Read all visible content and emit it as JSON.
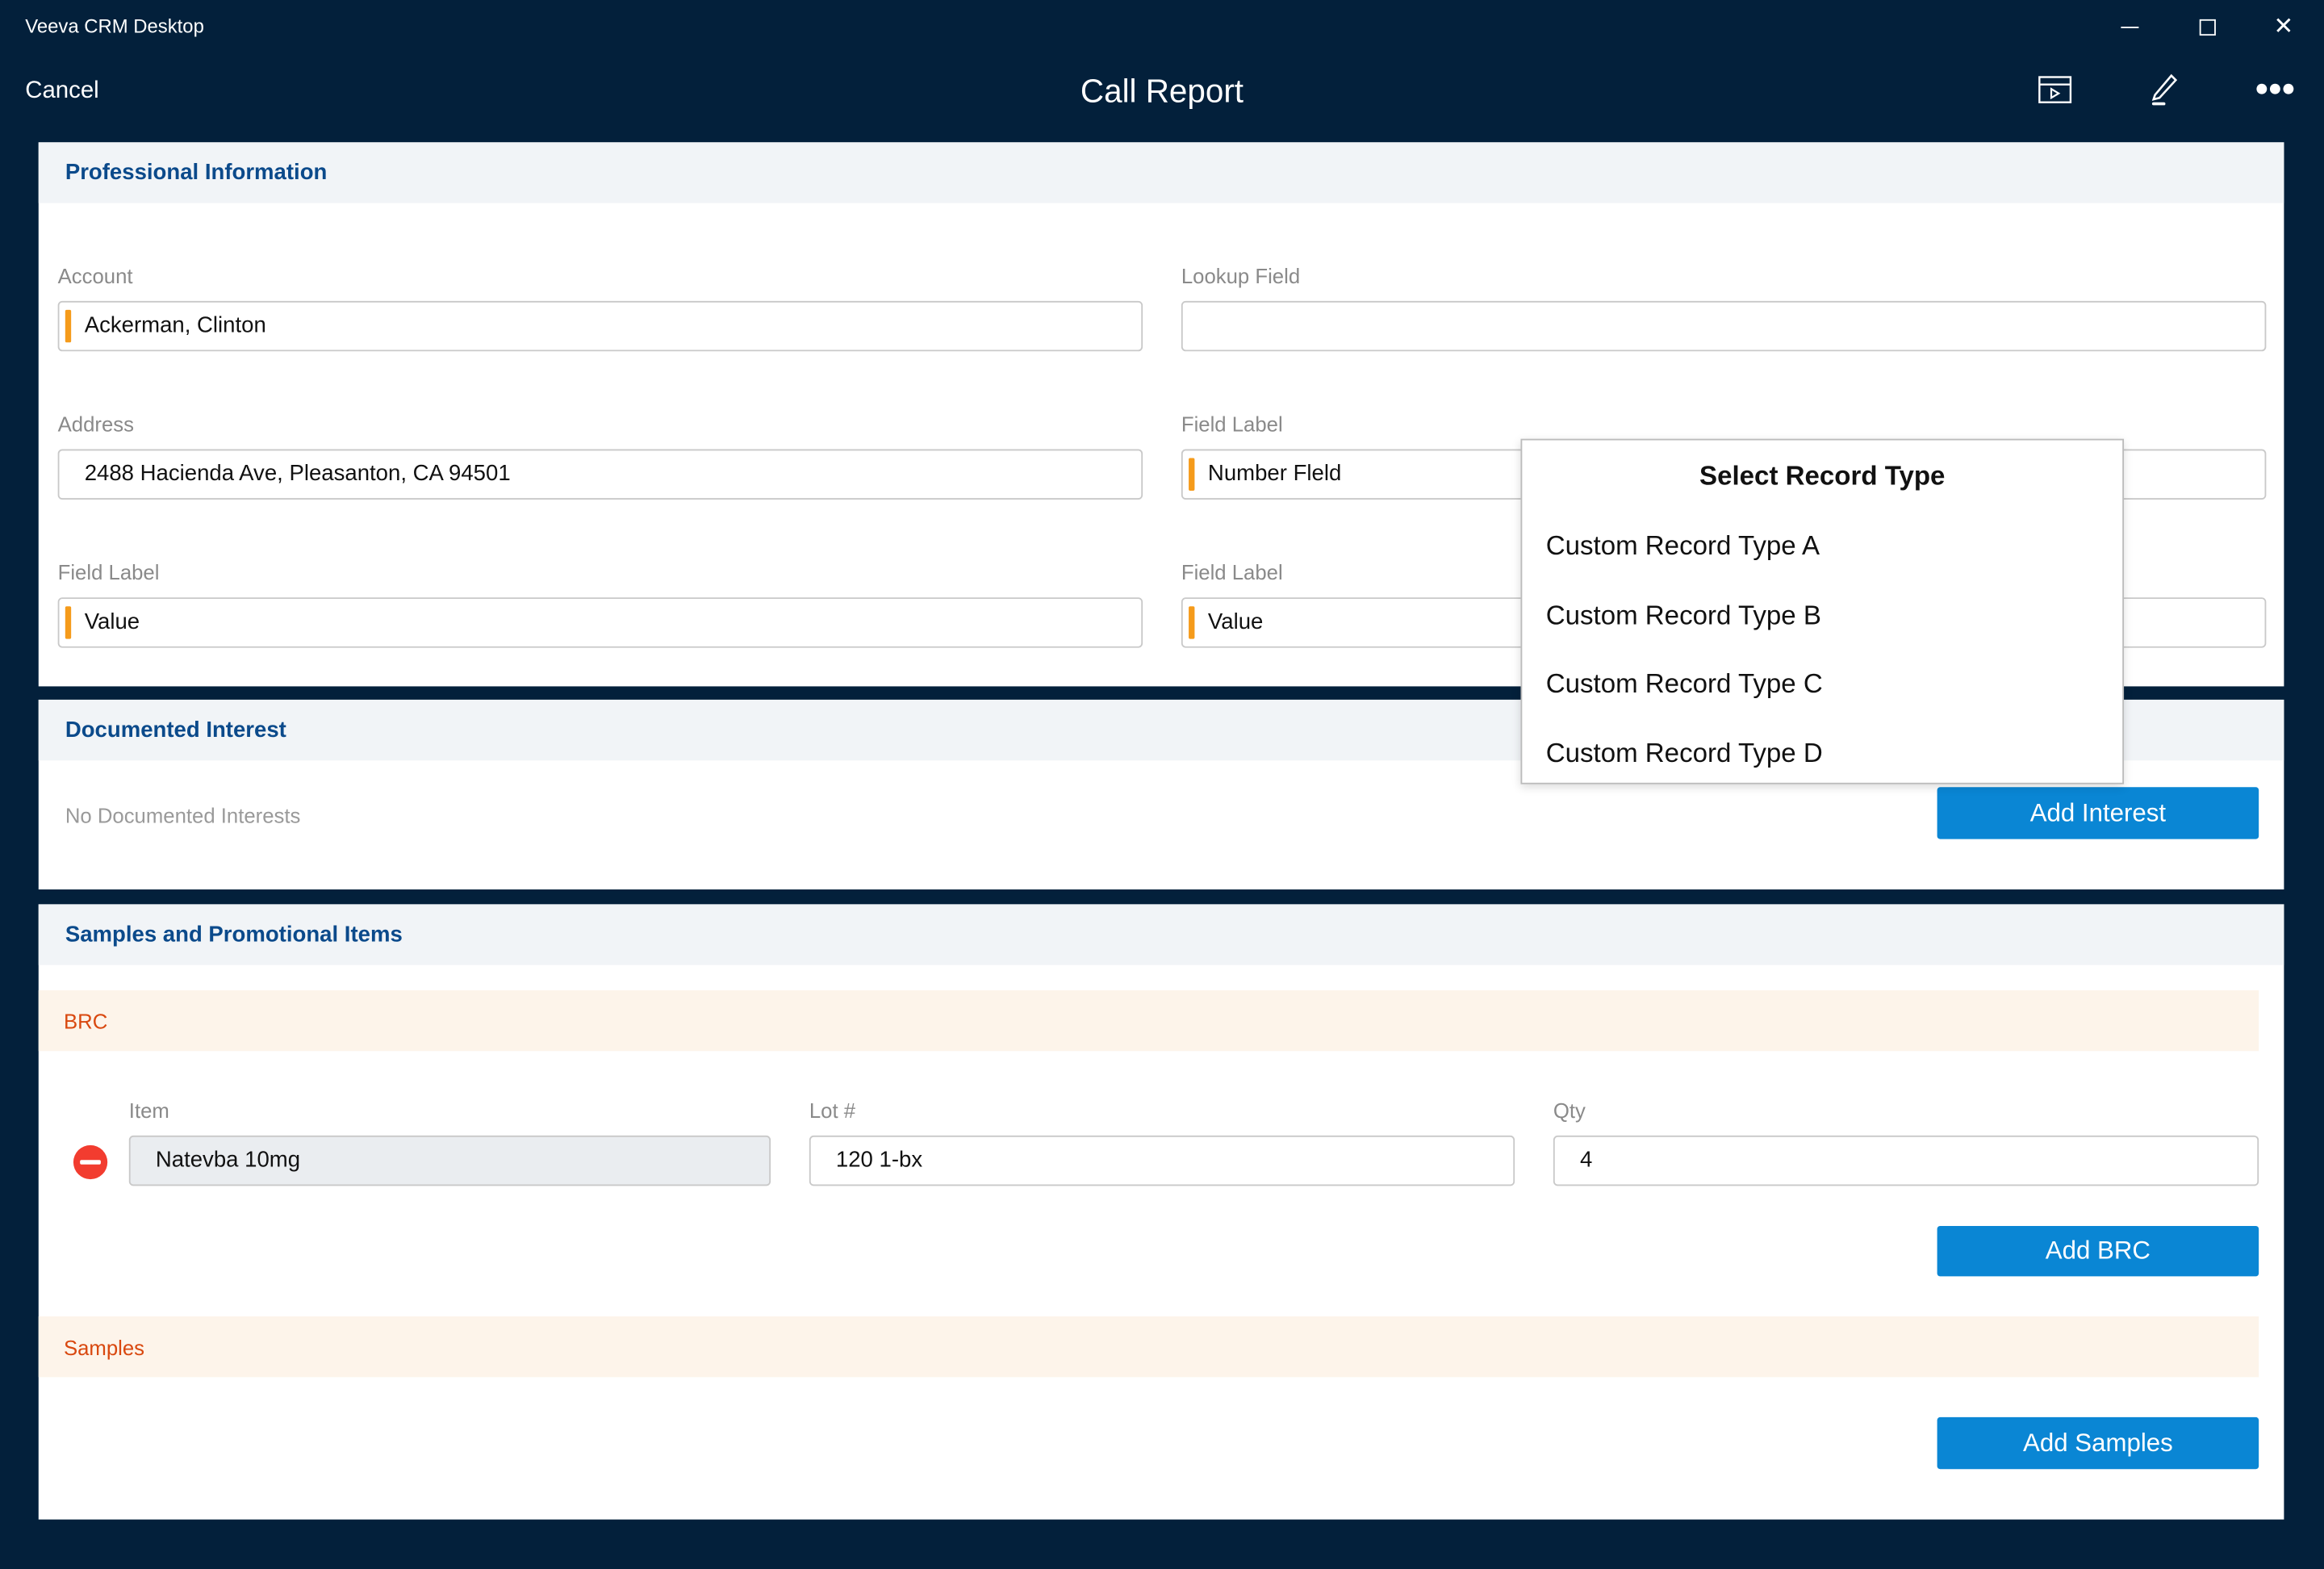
{
  "window": {
    "title": "Veeva CRM Desktop"
  },
  "header": {
    "cancel": "Cancel",
    "title": "Call Report",
    "icons": [
      "media-clapperboard-icon",
      "pen-edit-icon",
      "more-icon"
    ]
  },
  "professional": {
    "title": "Professional Information",
    "fields": [
      {
        "label": "Account",
        "value": "Ackerman, Clinton",
        "required": true
      },
      {
        "label": "Lookup Field",
        "value": "",
        "required": false
      },
      {
        "label": "Address",
        "value": "2488 Hacienda Ave, Pleasanton, CA 94501",
        "required": false
      },
      {
        "label": "Field Label",
        "value": "Number Fleld",
        "required": true
      },
      {
        "label": "Field Label",
        "value": "Value",
        "required": true
      },
      {
        "label": "Field Label",
        "value": "Value",
        "required": true
      }
    ]
  },
  "interest": {
    "title": "Documented Interest",
    "empty": "No Documented Interests",
    "add": "Add Interest"
  },
  "samples": {
    "title": "Samples and Promotional Items",
    "brc": {
      "title": "BRC",
      "headers": [
        "Item",
        "Lot #",
        "Qty"
      ],
      "row": {
        "item": "Natevba 10mg",
        "lot": "120 1-bx",
        "qty": "4"
      },
      "add": "Add BRC"
    },
    "samples_band": "Samples",
    "add_samples": "Add Samples"
  },
  "popup": {
    "title": "Select Record Type",
    "items": [
      "Custom Record Type A",
      "Custom Record Type B",
      "Custom Record Type C",
      "Custom Record Type D"
    ]
  },
  "colors": {
    "background": "#03203b",
    "accent": "#0a86d4",
    "section_title": "#0b4a8b",
    "required": "#f59b1b",
    "subsection": "#d9480f",
    "remove": "#f23c2f"
  }
}
